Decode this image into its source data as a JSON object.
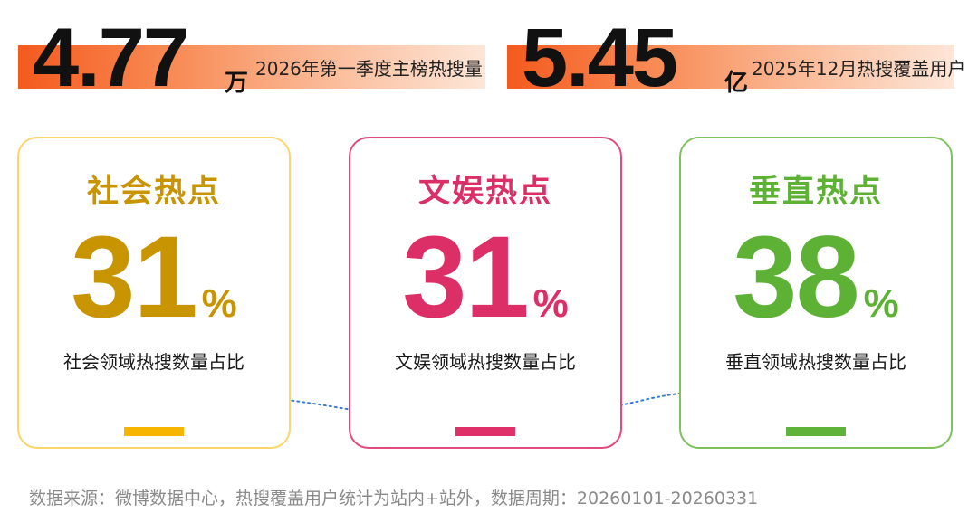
{
  "stats": [
    {
      "value": "4.77",
      "unit": "万",
      "caption": "2026年第一季度主榜热搜量"
    },
    {
      "value": "5.45",
      "unit": "亿",
      "caption": "2025年12月热搜覆盖用户"
    }
  ],
  "cards": [
    {
      "title": "社会热点",
      "number": "31",
      "symbol": "%",
      "desc": "社会领域热搜数量占比",
      "color": "#c89400"
    },
    {
      "title": "文娱热点",
      "number": "31",
      "symbol": "%",
      "desc": "文娱领域热搜数量占比",
      "color": "#dd2f67"
    },
    {
      "title": "垂直热点",
      "number": "38",
      "symbol": "%",
      "desc": "垂直领域热搜数量占比",
      "color": "#5db235"
    }
  ],
  "footer": "数据来源：微博数据中心，热搜覆盖用户统计为站内+站外，数据周期：20260101-20260331",
  "colors": {
    "accent_orange": "#f45a1e",
    "wave": "#3a7bd5"
  }
}
